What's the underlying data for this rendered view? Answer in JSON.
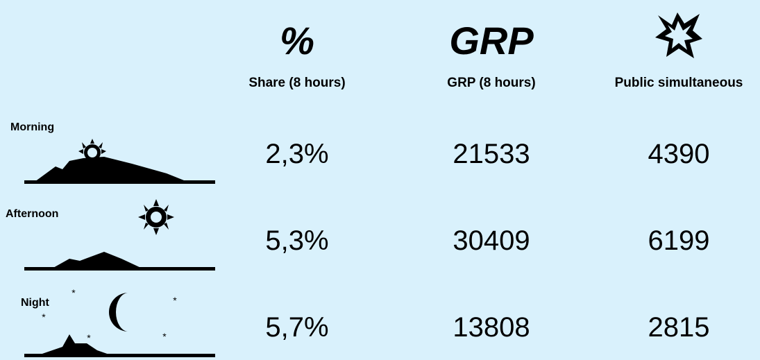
{
  "columns": [
    {
      "icon": "%",
      "label": "Share (8 hours)"
    },
    {
      "icon": "GRP",
      "label": "GRP (8 hours)"
    },
    {
      "label": "Public simultaneous"
    }
  ],
  "rows": [
    {
      "label": "Morning",
      "cells": [
        "2,3%",
        "21533",
        "4390"
      ]
    },
    {
      "label": "Afternoon",
      "cells": [
        "5,3%",
        "30409",
        "6199"
      ]
    },
    {
      "label": "Night",
      "cells": [
        "5,7%",
        "13808",
        "2815"
      ]
    }
  ]
}
